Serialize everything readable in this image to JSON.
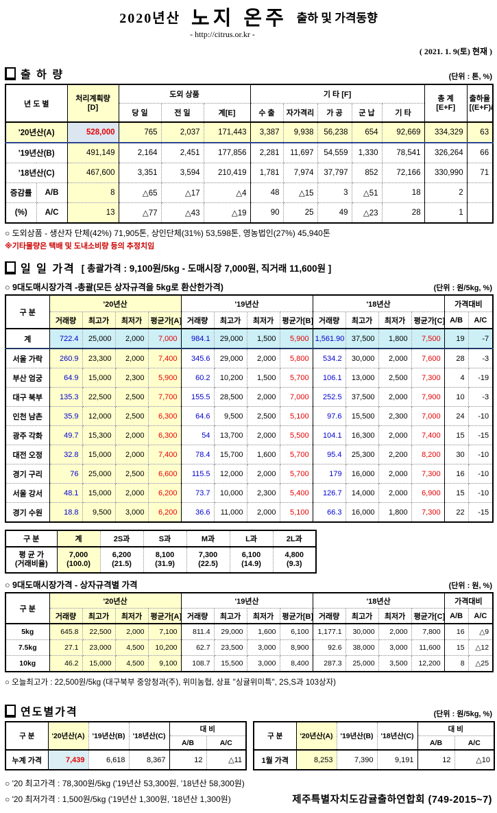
{
  "header": {
    "year_label": "2020년산",
    "title_main": "노지 온주",
    "title_sub": "출하 및 가격동향",
    "url": "- http://citrus.or.kr -",
    "date_stamp": "( 2021. 1. 9(토) 현재 )"
  },
  "shipment": {
    "title": "출 하 량",
    "unit": "(단위 : 톤, %)",
    "headers": {
      "year": "년 도 별",
      "plan": "처리계획량\n[D]",
      "island_group": "도외 상품",
      "today": "당 일",
      "prev": "전 일",
      "sum_e": "계[E]",
      "etc_group": "기      타 [F]",
      "export": "수 출",
      "self_quarantine": "자가격리",
      "processing": "가 공",
      "military": "군 납",
      "etc": "기 타",
      "total": "총  계\n[E+F]",
      "rate": "출하율\n[(E+F)/D]"
    },
    "rows": [
      {
        "label": "'20년산(A)",
        "values": [
          "528,000",
          "765",
          "2,037",
          "171,443",
          "3,387",
          "9,938",
          "56,238",
          "654",
          "92,669",
          "334,329",
          "63"
        ]
      },
      {
        "label": "'19년산(B)",
        "values": [
          "491,149",
          "2,164",
          "2,451",
          "177,856",
          "2,281",
          "11,697",
          "54,559",
          "1,330",
          "78,541",
          "326,264",
          "66"
        ]
      },
      {
        "label": "'18년산(C)",
        "values": [
          "467,600",
          "3,351",
          "3,594",
          "210,419",
          "1,781",
          "7,974",
          "37,797",
          "852",
          "72,166",
          "330,990",
          "71"
        ]
      }
    ],
    "change_label_top": "증감률",
    "change_label_bottom": "(%)",
    "change_rows": [
      {
        "sub": "A/B",
        "values": [
          "8",
          "△65",
          "△17",
          "△4",
          "48",
          "△15",
          "3",
          "△51",
          "18",
          "2",
          ""
        ]
      },
      {
        "sub": "A/C",
        "values": [
          "13",
          "△77",
          "△43",
          "△19",
          "90",
          "25",
          "49",
          "△23",
          "28",
          "1",
          ""
        ]
      }
    ],
    "note1": "○ 도외상품 - 생산자 단체(42%)  71,905톤,   상인단체(31%)  53,598톤,   영농법인(27%)  45,940톤",
    "note2": "※기타물량은 택배 및 도내소비량 등의 추정치임"
  },
  "daily": {
    "title": "일 일 가격",
    "title_detail": "[ 총괄가격 : 9,100원/5kg - 도매시장 7,000원, 직거래 11,600원 ]",
    "overall_subtitle": "○ 9대도매시장가격 -총괄(모든 상자규격을 5kg로 환산한가격)",
    "overall_unit": "(단위 : 원/5kg, %)",
    "market_headers": {
      "gubun": "구  분",
      "y20": "'20년산",
      "y19": "'19년산",
      "y18": "'18년산",
      "compare": "가격대비",
      "cols20": [
        "거래량",
        "최고가",
        "최저가",
        "평균가[A]"
      ],
      "cols19": [
        "거래량",
        "최고가",
        "최저가",
        "평균가[B]"
      ],
      "cols18": [
        "거래량",
        "최고가",
        "최저가",
        "평균가[C]"
      ],
      "ab": "A/B",
      "ac": "A/C"
    },
    "market_rows": [
      {
        "label": "계",
        "total": true,
        "values": [
          "722.4",
          "25,000",
          "2,000",
          "7,000",
          "984.1",
          "29,000",
          "1,500",
          "5,900",
          "1,561.90",
          "37,500",
          "1,800",
          "7,500",
          "19",
          "-7"
        ]
      },
      {
        "label": "서울 가락",
        "values": [
          "260.9",
          "23,300",
          "2,000",
          "7,400",
          "345.6",
          "29,000",
          "2,000",
          "5,800",
          "534.2",
          "30,000",
          "2,000",
          "7,600",
          "28",
          "-3"
        ]
      },
      {
        "label": "부산 엄궁",
        "values": [
          "64.9",
          "15,000",
          "2,300",
          "5,900",
          "60.2",
          "10,200",
          "1,500",
          "5,700",
          "106.1",
          "13,000",
          "2,500",
          "7,300",
          "4",
          "-19"
        ]
      },
      {
        "label": "대구 북부",
        "values": [
          "135.3",
          "22,500",
          "2,500",
          "7,700",
          "155.5",
          "28,500",
          "2,000",
          "7,000",
          "252.5",
          "37,500",
          "2,000",
          "7,900",
          "10",
          "-3"
        ]
      },
      {
        "label": "인천 남촌",
        "values": [
          "35.9",
          "12,000",
          "2,500",
          "6,300",
          "64.6",
          "9,500",
          "2,500",
          "5,100",
          "97.6",
          "15,500",
          "2,300",
          "7,000",
          "24",
          "-10"
        ]
      },
      {
        "label": "광주 각화",
        "values": [
          "49.7",
          "15,300",
          "2,000",
          "6,300",
          "54",
          "13,700",
          "2,000",
          "5,500",
          "104.1",
          "16,300",
          "2,000",
          "7,400",
          "15",
          "-15"
        ]
      },
      {
        "label": "대전 오정",
        "values": [
          "32.8",
          "15,000",
          "2,000",
          "7,400",
          "78.4",
          "15,700",
          "1,600",
          "5,700",
          "95.4",
          "25,300",
          "2,200",
          "8,200",
          "30",
          "-10"
        ]
      },
      {
        "label": "경기 구리",
        "values": [
          "76",
          "25,000",
          "2,500",
          "6,600",
          "115.5",
          "12,000",
          "2,000",
          "5,700",
          "179",
          "16,000",
          "2,000",
          "7,300",
          "16",
          "-10"
        ]
      },
      {
        "label": "서울 강서",
        "values": [
          "48.1",
          "15,000",
          "2,000",
          "6,200",
          "73.7",
          "10,000",
          "2,300",
          "5,400",
          "126.7",
          "14,000",
          "2,000",
          "6,900",
          "15",
          "-10"
        ]
      },
      {
        "label": "경기 수원",
        "values": [
          "18.8",
          "9,500",
          "3,000",
          "6,200",
          "36.6",
          "11,000",
          "2,000",
          "5,100",
          "66.3",
          "16,000",
          "1,800",
          "7,300",
          "22",
          "-15"
        ]
      }
    ],
    "sizes": {
      "gubun": "구   분",
      "headers": [
        "계",
        "2S과",
        "S과",
        "M과",
        "L과",
        "2L과"
      ],
      "row_label": "평 균 가\n(거래비율)",
      "values": [
        "7,000\n(100.0)",
        "6,200\n(21.5)",
        "8,100\n(31.9)",
        "7,300\n(22.5)",
        "6,100\n(14.9)",
        "4,800\n(9.3)"
      ]
    },
    "box_subtitle": "○ 9대도매시장가격 - 상자규격별 가격",
    "box_unit": "(단위 : 원, %)",
    "box_rows": [
      {
        "label": "5kg",
        "values": [
          "645.8",
          "22,500",
          "2,000",
          "7,100",
          "811.4",
          "29,000",
          "1,600",
          "6,100",
          "1,177.1",
          "30,000",
          "2,000",
          "7,800",
          "16",
          "△9"
        ]
      },
      {
        "label": "7.5kg",
        "values": [
          "27.1",
          "23,000",
          "4,500",
          "10,200",
          "62.7",
          "23,500",
          "3,000",
          "8,900",
          "92.6",
          "38,000",
          "3,000",
          "11,600",
          "15",
          "△12"
        ]
      },
      {
        "label": "10kg",
        "values": [
          "46.2",
          "15,000",
          "4,500",
          "9,100",
          "108.7",
          "15,500",
          "3,000",
          "8,400",
          "287.3",
          "25,000",
          "3,500",
          "12,200",
          "8",
          "△25"
        ]
      }
    ],
    "today_high_note": "○ 오늘최고가 :  22,500원/5kg (대구북부  중앙청과(주),  위미농협,  상표 \"싱귤위미특\",  2S,S과  103상자)"
  },
  "yearly": {
    "title": "연도별가격",
    "unit": "(단위 : 원/5kg, %)",
    "headers": {
      "gubun": "구      분",
      "a": "'20년산(A)",
      "b": "'19년산(B)",
      "c": "'18년산(C)",
      "compare": "대      비",
      "ab": "A/B",
      "ac": "A/C"
    },
    "left_row": {
      "label": "누계 가격",
      "a": "7,439",
      "b": "6,618",
      "c": "8,367",
      "ab": "12",
      "ac": "△11"
    },
    "right_row": {
      "label": "1월 가격",
      "a": "8,253",
      "b": "7,390",
      "c": "9,191",
      "ab": "12",
      "ac": "△10"
    },
    "note_high": "○ '20 최고가격 : 78,300원/5kg ('19년산 53,300원, '18년산 58,300원)",
    "note_low": "○ '20 최저가격 :  1,500원/5kg ('19년산  1,300원, '18년산  1,300원)",
    "org": "제주특별자치도감귤출하연합회 (749-2015~7)"
  },
  "colors": {
    "highlight_yellow": "#FFFFCC",
    "total_row_cyan": "#CDEFF6",
    "plan_cell_blue": "#DCE6F1",
    "accum_cell_blue": "#DAEEF3",
    "red_text": "#E60000",
    "blue_text": "#0000CD",
    "navy_border": "#2B4490",
    "note_red": "#CC0000"
  }
}
